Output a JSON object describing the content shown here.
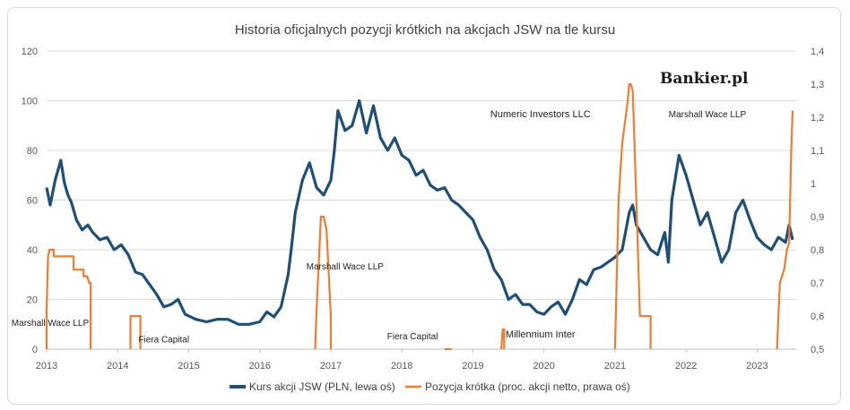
{
  "colors": {
    "price": "#1f4e79",
    "short": "#ed7d31",
    "grid": "#d9d9d9",
    "axis": "#bfbfbf"
  },
  "brand": "Bankier.pl",
  "chart_data": {
    "type": "line",
    "title": "Historia oficjalnych pozycji krótkich na akcjach JSW na tle kursu",
    "xlim": [
      2013,
      2023.55
    ],
    "x_ticks": [
      "2013",
      "2014",
      "2015",
      "2016",
      "2017",
      "2018",
      "2019",
      "2020",
      "2021",
      "2022",
      "2023"
    ],
    "y_left": {
      "lim": [
        0,
        120
      ],
      "ticks": [
        "0",
        "20",
        "40",
        "60",
        "80",
        "100",
        "120"
      ]
    },
    "y_right": {
      "lim": [
        0.5,
        1.4
      ],
      "ticks": [
        "0,5",
        "0,6",
        "0,7",
        "0,8",
        "0,9",
        "1",
        "1,1",
        "1,2",
        "1,3",
        "1,4"
      ]
    },
    "grid": "horizontal",
    "legend_position": "bottom",
    "series": [
      {
        "name": "Kurs akcji JSW (PLN, lewa oś)",
        "axis": "left",
        "x": [
          2013.0,
          2013.05,
          2013.12,
          2013.2,
          2013.25,
          2013.3,
          2013.35,
          2013.42,
          2013.5,
          2013.58,
          2013.65,
          2013.75,
          2013.85,
          2013.95,
          2014.05,
          2014.15,
          2014.25,
          2014.35,
          2014.45,
          2014.55,
          2014.65,
          2014.75,
          2014.85,
          2014.95,
          2015.1,
          2015.25,
          2015.4,
          2015.55,
          2015.7,
          2015.85,
          2016.0,
          2016.1,
          2016.2,
          2016.3,
          2016.4,
          2016.45,
          2016.5,
          2016.6,
          2016.7,
          2016.8,
          2016.9,
          2017.0,
          2017.05,
          2017.1,
          2017.2,
          2017.3,
          2017.4,
          2017.5,
          2017.6,
          2017.7,
          2017.8,
          2017.9,
          2018.0,
          2018.1,
          2018.2,
          2018.3,
          2018.4,
          2018.5,
          2018.6,
          2018.7,
          2018.8,
          2018.9,
          2019.0,
          2019.1,
          2019.2,
          2019.3,
          2019.4,
          2019.5,
          2019.6,
          2019.7,
          2019.8,
          2019.9,
          2020.0,
          2020.1,
          2020.2,
          2020.3,
          2020.4,
          2020.5,
          2020.6,
          2020.7,
          2020.8,
          2020.9,
          2021.0,
          2021.1,
          2021.2,
          2021.25,
          2021.3,
          2021.4,
          2021.5,
          2021.6,
          2021.7,
          2021.75,
          2021.8,
          2021.9,
          2022.0,
          2022.1,
          2022.2,
          2022.3,
          2022.4,
          2022.5,
          2022.6,
          2022.7,
          2022.8,
          2022.9,
          2023.0,
          2023.1,
          2023.2,
          2023.3,
          2023.4,
          2023.45,
          2023.5
        ],
        "values": [
          65,
          58,
          68,
          76,
          67,
          62,
          59,
          52,
          48,
          50,
          47,
          44,
          45,
          40,
          42,
          38,
          31,
          30,
          26,
          22,
          17,
          18,
          20,
          14,
          12,
          11,
          12,
          12,
          10,
          10,
          11,
          15,
          13,
          17,
          30,
          42,
          55,
          68,
          75,
          65,
          62,
          68,
          80,
          96,
          88,
          90,
          100,
          87,
          98,
          85,
          80,
          85,
          78,
          76,
          70,
          72,
          66,
          64,
          65,
          60,
          58,
          55,
          52,
          45,
          40,
          32,
          28,
          20,
          22,
          18,
          18,
          15,
          14,
          17,
          19,
          14,
          20,
          28,
          26,
          32,
          33,
          35,
          37,
          40,
          55,
          58,
          50,
          45,
          40,
          38,
          47,
          35,
          60,
          78,
          70,
          60,
          50,
          55,
          45,
          35,
          40,
          55,
          60,
          52,
          45,
          42,
          40,
          45,
          43,
          50,
          44
        ],
        "color": "#1f4e79"
      },
      {
        "name": "Pozycja krótka (proc. akcji netto, prawa oś)",
        "axis": "right",
        "segments": [
          {
            "x": [
              2013.0,
              2013.0,
              2013.02,
              2013.04,
              2013.1,
              2013.1,
              2013.38,
              2013.38,
              2013.52,
              2013.52,
              2013.57,
              2013.6,
              2013.62,
              2013.62
            ],
            "y": [
              0.5,
              0.62,
              0.78,
              0.8,
              0.8,
              0.78,
              0.78,
              0.74,
              0.74,
              0.72,
              0.72,
              0.7,
              0.7,
              0.5
            ]
          },
          {
            "x": [
              2014.18,
              2014.18,
              2014.32,
              2014.32
            ],
            "y": [
              0.5,
              0.6,
              0.6,
              0.5
            ]
          },
          {
            "x": [
              2016.78,
              2016.8,
              2016.86,
              2016.9,
              2016.94,
              2017.0,
              2017.0
            ],
            "y": [
              0.5,
              0.62,
              0.9,
              0.9,
              0.86,
              0.6,
              0.5
            ]
          },
          {
            "x": [
              2018.6,
              2018.7
            ],
            "y": [
              0.5,
              0.5
            ]
          },
          {
            "x": [
              2019.4,
              2019.42,
              2019.44,
              2019.44
            ],
            "y": [
              0.5,
              0.56,
              0.56,
              0.5
            ]
          },
          {
            "x": [
              2021.0,
              2021.05,
              2021.1,
              2021.18,
              2021.2,
              2021.22,
              2021.25,
              2021.3,
              2021.35,
              2021.5,
              2021.5
            ],
            "y": [
              0.5,
              0.95,
              1.12,
              1.25,
              1.3,
              1.3,
              1.28,
              0.95,
              0.6,
              0.6,
              0.5
            ]
          },
          {
            "x": [
              2023.28,
              2023.3,
              2023.32,
              2023.35,
              2023.38,
              2023.42,
              2023.45,
              2023.48,
              2023.5
            ],
            "y": [
              0.5,
              0.6,
              0.7,
              0.72,
              0.74,
              0.8,
              0.82,
              1.1,
              1.22
            ]
          }
        ],
        "color": "#ed7d31"
      }
    ],
    "annotations": [
      {
        "text": "Marshall Wace LLP",
        "x": 2013.05,
        "y_right": 0.57
      },
      {
        "text": "Fiera Capital",
        "x": 2014.65,
        "y_right": 0.52
      },
      {
        "text": "Marshall Wace LLP",
        "x": 2017.2,
        "y_right": 0.74
      },
      {
        "text": "Fiera Capital",
        "x": 2018.15,
        "y_right": 0.53
      },
      {
        "text": "Millennium Inter",
        "x": 2019.95,
        "y_right": 0.535
      },
      {
        "text": "Numeric Investors LLC",
        "x": 2019.95,
        "y_right": 1.2
      },
      {
        "text": "Marshall Wace LLP",
        "x": 2022.3,
        "y_right": 1.2
      }
    ]
  }
}
